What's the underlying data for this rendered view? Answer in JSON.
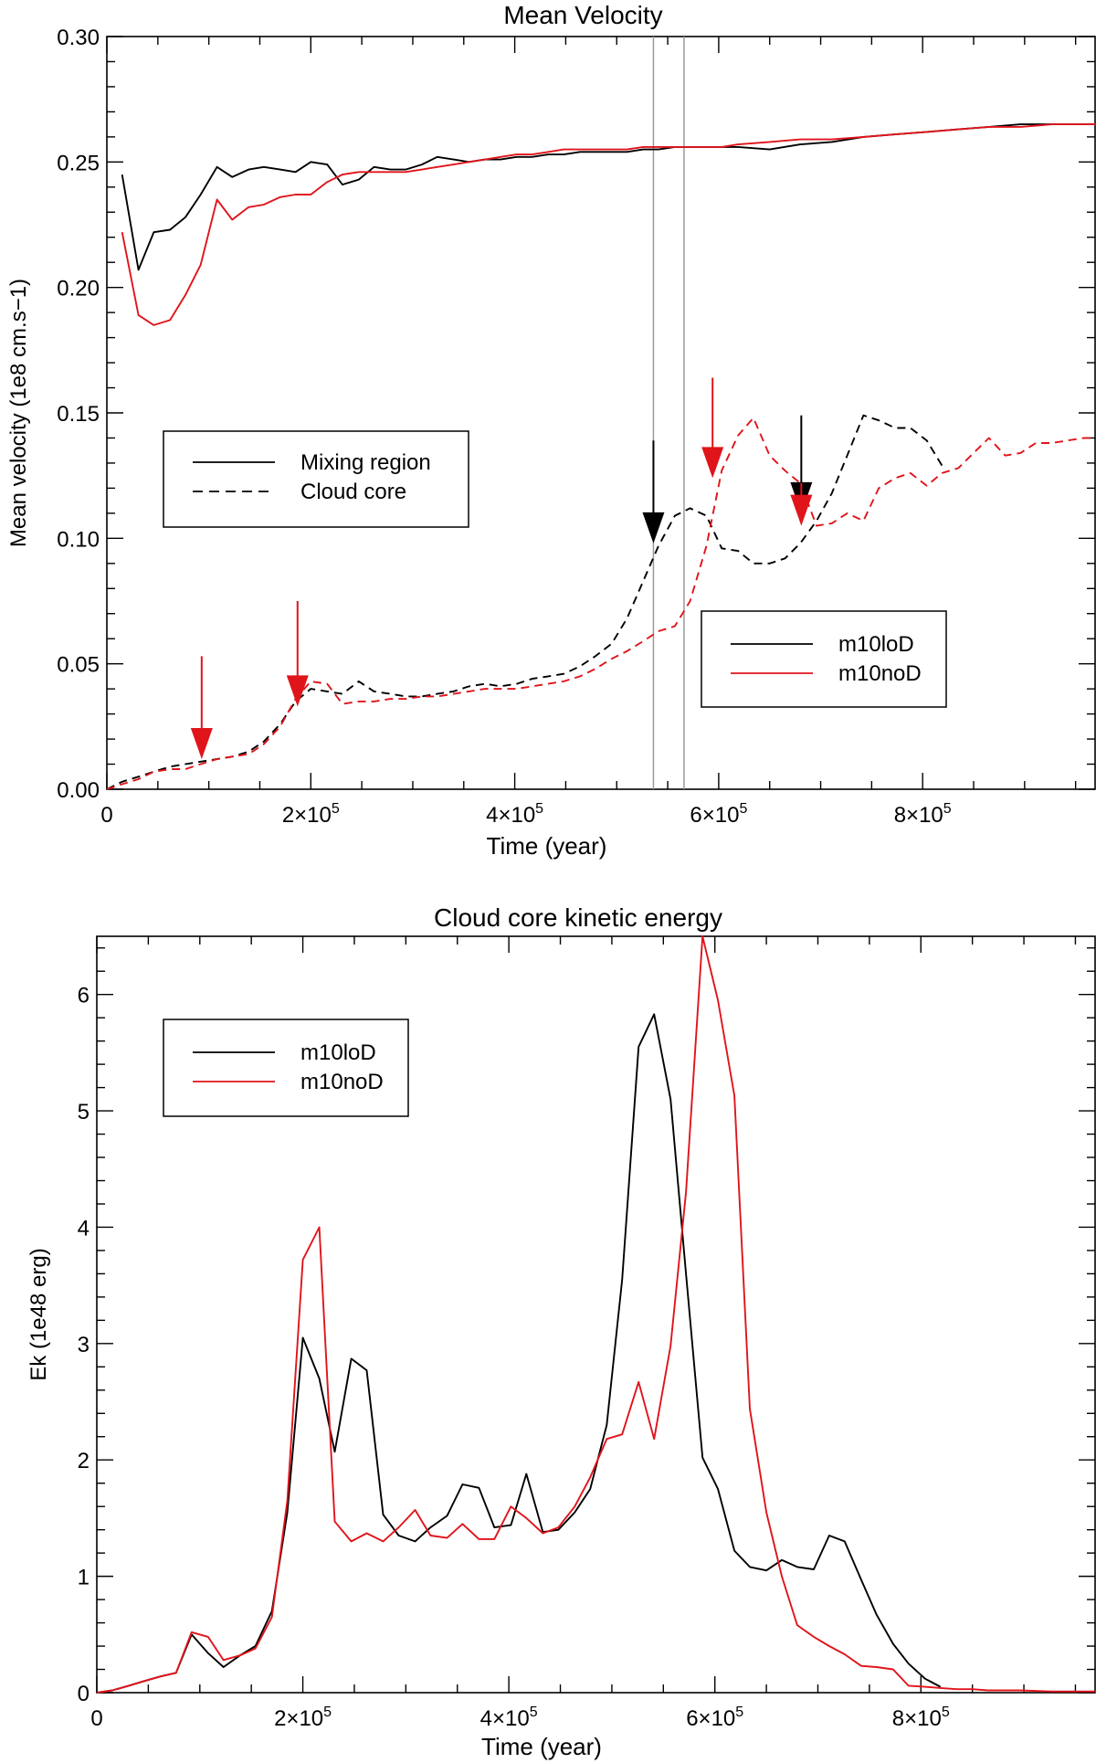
{
  "chart_data": [
    {
      "type": "line",
      "title": "Mean Velocity",
      "xlabel": "Time (year)",
      "ylabel": "Mean velocity (1e8 cm.s−1)",
      "xlim": [
        0,
        970000
      ],
      "ylim": [
        0,
        0.3
      ],
      "xticks": [
        {
          "value": 0,
          "base": "0",
          "exp": ""
        },
        {
          "value": 200000,
          "base": "2×10",
          "exp": "5"
        },
        {
          "value": 400000,
          "base": "4×10",
          "exp": "5"
        },
        {
          "value": 600000,
          "base": "6×10",
          "exp": "5"
        },
        {
          "value": 800000,
          "base": "8×10",
          "exp": "5"
        }
      ],
      "yticks": [
        {
          "value": 0,
          "label": "0.00"
        },
        {
          "value": 0.05,
          "label": "0.05"
        },
        {
          "value": 0.1,
          "label": "0.10"
        },
        {
          "value": 0.15,
          "label": "0.15"
        },
        {
          "value": 0.2,
          "label": "0.20"
        },
        {
          "value": 0.25,
          "label": "0.25"
        },
        {
          "value": 0.3,
          "label": "0.30"
        }
      ],
      "legend_style": {
        "position": "upper-left",
        "entries": [
          "Mixing region",
          "Cloud core"
        ]
      },
      "legend_runs": {
        "position": "lower-right",
        "entries": [
          {
            "name": "m10loD",
            "color": "#000000"
          },
          {
            "name": "m10noD",
            "color": "#e0141b"
          }
        ]
      },
      "vlines": [
        536000,
        566000
      ],
      "series": [
        {
          "name": "m10loD",
          "region": "Mixing region",
          "style": "solid",
          "color": "#000000",
          "x": [
            15000,
            31000,
            46000,
            62000,
            77000,
            92000,
            108000,
            123000,
            139000,
            154000,
            170000,
            185000,
            200000,
            216000,
            231000,
            247000,
            262000,
            278000,
            293000,
            309000,
            324000,
            340000,
            355000,
            371000,
            386000,
            402000,
            417000,
            433000,
            448000,
            464000,
            479000,
            495000,
            510000,
            526000,
            541000,
            557000,
            572000,
            588000,
            603000,
            619000,
            650000,
            680000,
            711000,
            742000,
            773000,
            804000,
            835000,
            865000,
            896000,
            927000,
            958000,
            970000
          ],
          "y": [
            0.245,
            0.207,
            0.222,
            0.223,
            0.228,
            0.237,
            0.248,
            0.244,
            0.247,
            0.248,
            0.247,
            0.246,
            0.25,
            0.249,
            0.241,
            0.243,
            0.248,
            0.247,
            0.247,
            0.249,
            0.252,
            0.251,
            0.25,
            0.251,
            0.251,
            0.252,
            0.252,
            0.253,
            0.253,
            0.254,
            0.254,
            0.254,
            0.254,
            0.255,
            0.255,
            0.256,
            0.256,
            0.256,
            0.256,
            0.256,
            0.255,
            0.257,
            0.258,
            0.26,
            0.261,
            0.262,
            0.263,
            0.264,
            0.265,
            0.265,
            0.265,
            0.265
          ]
        },
        {
          "name": "m10noD",
          "region": "Mixing region",
          "style": "solid",
          "color": "#e0141b",
          "x": [
            15000,
            31000,
            46000,
            62000,
            77000,
            92000,
            108000,
            123000,
            139000,
            154000,
            170000,
            185000,
            200000,
            216000,
            231000,
            247000,
            262000,
            278000,
            293000,
            309000,
            324000,
            340000,
            355000,
            371000,
            386000,
            402000,
            417000,
            433000,
            448000,
            464000,
            479000,
            495000,
            510000,
            526000,
            541000,
            557000,
            572000,
            588000,
            603000,
            619000,
            650000,
            680000,
            711000,
            742000,
            773000,
            804000,
            835000,
            865000,
            896000,
            927000,
            958000,
            970000
          ],
          "y": [
            0.222,
            0.189,
            0.185,
            0.187,
            0.197,
            0.209,
            0.235,
            0.227,
            0.232,
            0.233,
            0.236,
            0.237,
            0.237,
            0.242,
            0.245,
            0.246,
            0.246,
            0.246,
            0.246,
            0.247,
            0.248,
            0.249,
            0.25,
            0.251,
            0.252,
            0.253,
            0.253,
            0.254,
            0.255,
            0.255,
            0.255,
            0.255,
            0.255,
            0.256,
            0.256,
            0.256,
            0.256,
            0.256,
            0.256,
            0.257,
            0.258,
            0.259,
            0.259,
            0.26,
            0.261,
            0.262,
            0.263,
            0.264,
            0.264,
            0.265,
            0.265,
            0.265
          ]
        },
        {
          "name": "m10loD",
          "region": "Cloud core",
          "style": "dashed",
          "color": "#000000",
          "x": [
            0,
            15000,
            31000,
            46000,
            62000,
            77000,
            92000,
            108000,
            123000,
            139000,
            154000,
            170000,
            185000,
            200000,
            216000,
            231000,
            247000,
            262000,
            278000,
            293000,
            309000,
            324000,
            340000,
            355000,
            371000,
            386000,
            402000,
            417000,
            433000,
            448000,
            464000,
            479000,
            495000,
            510000,
            526000,
            541000,
            557000,
            572000,
            588000,
            603000,
            619000,
            634000,
            650000,
            665000,
            680000,
            696000,
            711000,
            726000,
            742000,
            757000,
            773000,
            788000,
            804000,
            819000
          ],
          "y": [
            0.0,
            0.003,
            0.005,
            0.007,
            0.009,
            0.01,
            0.011,
            0.012,
            0.013,
            0.015,
            0.019,
            0.026,
            0.035,
            0.04,
            0.039,
            0.038,
            0.043,
            0.039,
            0.038,
            0.037,
            0.037,
            0.038,
            0.039,
            0.041,
            0.042,
            0.041,
            0.042,
            0.044,
            0.045,
            0.046,
            0.049,
            0.053,
            0.058,
            0.068,
            0.083,
            0.097,
            0.109,
            0.112,
            0.109,
            0.096,
            0.095,
            0.09,
            0.09,
            0.092,
            0.098,
            0.107,
            0.118,
            0.133,
            0.149,
            0.147,
            0.144,
            0.144,
            0.139,
            0.129
          ]
        },
        {
          "name": "m10noD",
          "region": "Cloud core",
          "style": "dashed",
          "color": "#e0141b",
          "x": [
            0,
            15000,
            31000,
            46000,
            62000,
            77000,
            92000,
            108000,
            123000,
            139000,
            154000,
            170000,
            185000,
            200000,
            216000,
            231000,
            247000,
            262000,
            278000,
            293000,
            309000,
            324000,
            340000,
            355000,
            371000,
            386000,
            402000,
            417000,
            433000,
            448000,
            464000,
            479000,
            495000,
            510000,
            526000,
            541000,
            557000,
            572000,
            588000,
            603000,
            619000,
            634000,
            650000,
            665000,
            680000,
            696000,
            711000,
            726000,
            742000,
            757000,
            773000,
            788000,
            804000,
            819000,
            835000,
            850000,
            865000,
            881000,
            896000,
            911000,
            927000,
            942000,
            958000,
            970000
          ],
          "y": [
            0.0,
            0.002,
            0.004,
            0.007,
            0.008,
            0.008,
            0.01,
            0.012,
            0.013,
            0.014,
            0.018,
            0.025,
            0.036,
            0.043,
            0.042,
            0.034,
            0.035,
            0.035,
            0.036,
            0.036,
            0.037,
            0.037,
            0.038,
            0.039,
            0.04,
            0.04,
            0.04,
            0.041,
            0.042,
            0.043,
            0.045,
            0.048,
            0.052,
            0.055,
            0.059,
            0.063,
            0.065,
            0.075,
            0.097,
            0.127,
            0.141,
            0.148,
            0.133,
            0.127,
            0.122,
            0.105,
            0.106,
            0.11,
            0.107,
            0.12,
            0.124,
            0.126,
            0.121,
            0.126,
            0.128,
            0.134,
            0.14,
            0.133,
            0.134,
            0.138,
            0.138,
            0.139,
            0.14,
            0.14
          ]
        }
      ],
      "arrows": [
        {
          "run": "m10noD",
          "color": "#e0141b",
          "x": 93000,
          "y_tip": 0.012,
          "y_tail": 0.053
        },
        {
          "run": "m10noD",
          "color": "#e0141b",
          "x": 187000,
          "y_tip": 0.033,
          "y_tail": 0.075
        },
        {
          "run": "m10loD",
          "color": "#000000",
          "x": 536000,
          "y_tip": 0.098,
          "y_tail": 0.139
        },
        {
          "run": "m10noD",
          "color": "#e0141b",
          "x": 594000,
          "y_tip": 0.124,
          "y_tail": 0.164
        },
        {
          "run": "m10loD",
          "color": "#000000",
          "x": 681000,
          "y_tip": 0.11,
          "y_tail": 0.149
        },
        {
          "run": "m10noD",
          "color": "#e0141b",
          "x": 681000,
          "y_tip": 0.105,
          "y_tail": 0.122
        }
      ]
    },
    {
      "type": "line",
      "title": "Cloud core kinetic energy",
      "xlabel": "Time (year)",
      "ylabel": "Ek (1e48 erg)",
      "xlim": [
        0,
        970000
      ],
      "ylim": [
        0,
        6.5
      ],
      "xticks": [
        {
          "value": 0,
          "base": "0",
          "exp": ""
        },
        {
          "value": 200000,
          "base": "2×10",
          "exp": "5"
        },
        {
          "value": 400000,
          "base": "4×10",
          "exp": "5"
        },
        {
          "value": 600000,
          "base": "6×10",
          "exp": "5"
        },
        {
          "value": 800000,
          "base": "8×10",
          "exp": "5"
        }
      ],
      "yticks": [
        {
          "value": 0,
          "label": "0"
        },
        {
          "value": 1,
          "label": "1"
        },
        {
          "value": 2,
          "label": "2"
        },
        {
          "value": 3,
          "label": "3"
        },
        {
          "value": 4,
          "label": "4"
        },
        {
          "value": 5,
          "label": "5"
        },
        {
          "value": 6,
          "label": "6"
        }
      ],
      "legend_runs": {
        "position": "upper-left",
        "entries": [
          {
            "name": "m10loD",
            "color": "#000000"
          },
          {
            "name": "m10noD",
            "color": "#e0141b"
          }
        ]
      },
      "series": [
        {
          "name": "m10loD",
          "style": "solid",
          "color": "#000000",
          "x": [
            0,
            15000,
            31000,
            46000,
            62000,
            77000,
            92000,
            108000,
            123000,
            139000,
            154000,
            170000,
            185000,
            200000,
            216000,
            231000,
            247000,
            262000,
            278000,
            293000,
            309000,
            324000,
            340000,
            355000,
            371000,
            386000,
            402000,
            417000,
            433000,
            448000,
            464000,
            479000,
            495000,
            510000,
            526000,
            541000,
            557000,
            572000,
            588000,
            603000,
            619000,
            634000,
            650000,
            665000,
            680000,
            696000,
            711000,
            726000,
            742000,
            757000,
            773000,
            788000,
            804000,
            819000
          ],
          "y": [
            0.0,
            0.02,
            0.06,
            0.1,
            0.14,
            0.17,
            0.5,
            0.34,
            0.22,
            0.32,
            0.4,
            0.7,
            1.55,
            3.05,
            2.7,
            2.07,
            2.87,
            2.77,
            1.53,
            1.35,
            1.3,
            1.42,
            1.52,
            1.79,
            1.76,
            1.42,
            1.44,
            1.88,
            1.38,
            1.4,
            1.55,
            1.75,
            2.3,
            3.55,
            5.55,
            5.83,
            5.1,
            3.6,
            2.02,
            1.75,
            1.22,
            1.08,
            1.05,
            1.14,
            1.08,
            1.06,
            1.35,
            1.3,
            0.97,
            0.67,
            0.42,
            0.25,
            0.12,
            0.05
          ]
        },
        {
          "name": "m10noD",
          "style": "solid",
          "color": "#e0141b",
          "x": [
            0,
            15000,
            31000,
            46000,
            62000,
            77000,
            92000,
            108000,
            123000,
            139000,
            154000,
            170000,
            185000,
            200000,
            216000,
            231000,
            247000,
            262000,
            278000,
            293000,
            309000,
            324000,
            340000,
            355000,
            371000,
            386000,
            402000,
            417000,
            433000,
            448000,
            464000,
            479000,
            495000,
            510000,
            526000,
            541000,
            557000,
            572000,
            588000,
            603000,
            619000,
            634000,
            650000,
            665000,
            680000,
            696000,
            711000,
            726000,
            742000,
            757000,
            773000,
            788000,
            804000,
            819000,
            835000,
            850000,
            865000,
            896000,
            927000,
            958000,
            970000
          ],
          "y": [
            0.0,
            0.02,
            0.06,
            0.1,
            0.14,
            0.17,
            0.52,
            0.48,
            0.28,
            0.32,
            0.38,
            0.65,
            1.65,
            3.72,
            4.0,
            1.47,
            1.3,
            1.37,
            1.3,
            1.42,
            1.57,
            1.35,
            1.33,
            1.45,
            1.32,
            1.32,
            1.6,
            1.5,
            1.37,
            1.42,
            1.6,
            1.85,
            2.18,
            2.22,
            2.67,
            2.18,
            2.98,
            4.3,
            6.5,
            5.95,
            5.13,
            2.44,
            1.55,
            1.0,
            0.58,
            0.48,
            0.4,
            0.33,
            0.23,
            0.22,
            0.2,
            0.06,
            0.05,
            0.04,
            0.03,
            0.03,
            0.02,
            0.02,
            0.01,
            0.01,
            0.01
          ]
        }
      ]
    }
  ]
}
